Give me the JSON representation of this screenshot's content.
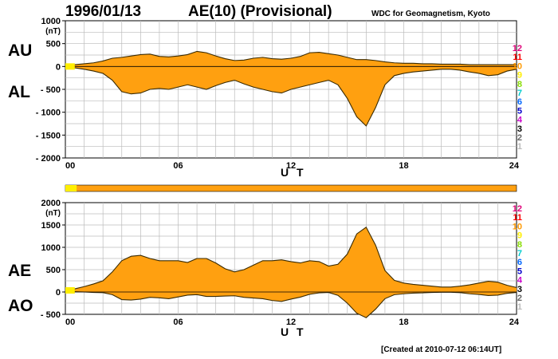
{
  "header": {
    "date": "1996/01/13",
    "title": "AE(10) (Provisional)",
    "org": "WDC for Geomagnetism, Kyoto"
  },
  "footer": {
    "created": "[Created at 2010-07-12 06:14UT]"
  },
  "legend": {
    "items": [
      {
        "label": "12",
        "color": "#e0007a"
      },
      {
        "label": "11",
        "color": "#ff0000"
      },
      {
        "label": "10",
        "color": "#ff9900"
      },
      {
        "label": "9",
        "color": "#ffee00"
      },
      {
        "label": "8",
        "color": "#88dd00"
      },
      {
        "label": "7",
        "color": "#00cccc"
      },
      {
        "label": "6",
        "color": "#0066ff"
      },
      {
        "label": "5",
        "color": "#0000cc"
      },
      {
        "label": "4",
        "color": "#cc00cc"
      },
      {
        "label": "3",
        "color": "#000000"
      },
      {
        "label": "2",
        "color": "#666666"
      },
      {
        "label": "1",
        "color": "#bbbbbb"
      }
    ]
  },
  "colors": {
    "fill": "#ffa010",
    "line": "#3a2a00",
    "grid": "#bbbbbb",
    "yellow": "#ffee00"
  },
  "chart_data": [
    {
      "type": "area",
      "label_top": "AU",
      "label_bottom": "AL",
      "unit": "(nT)",
      "xlabel": "U T",
      "xlim": [
        0,
        24
      ],
      "ylim": [
        -2000,
        1000
      ],
      "x_ticks": [
        "00",
        "06",
        "12",
        "18",
        "24"
      ],
      "y_ticks": [
        "1000",
        "500",
        "0",
        "- 500",
        "- 1000",
        "- 1500",
        "- 2000"
      ],
      "series": [
        {
          "name": "AU",
          "x": [
            0,
            0.5,
            1,
            1.5,
            2,
            2.5,
            3,
            3.5,
            4,
            4.5,
            5,
            5.5,
            6,
            6.5,
            7,
            7.5,
            8,
            8.5,
            9,
            9.5,
            10,
            10.5,
            11,
            11.5,
            12,
            12.5,
            13,
            13.5,
            14,
            14.5,
            15,
            15.5,
            16,
            16.5,
            17,
            17.5,
            18,
            18.5,
            19,
            19.5,
            20,
            20.5,
            21,
            21.5,
            22,
            22.5,
            23,
            23.5,
            24
          ],
          "values": [
            30,
            40,
            60,
            80,
            120,
            180,
            200,
            230,
            260,
            270,
            220,
            210,
            230,
            260,
            330,
            300,
            230,
            170,
            130,
            140,
            180,
            200,
            170,
            160,
            180,
            220,
            300,
            310,
            280,
            250,
            200,
            150,
            150,
            130,
            100,
            80,
            70,
            70,
            60,
            60,
            50,
            50,
            50,
            40,
            40,
            40,
            40,
            40,
            40
          ]
        },
        {
          "name": "AL",
          "x": [
            0,
            0.5,
            1,
            1.5,
            2,
            2.5,
            3,
            3.5,
            4,
            4.5,
            5,
            5.5,
            6,
            6.5,
            7,
            7.5,
            8,
            8.5,
            9,
            9.5,
            10,
            10.5,
            11,
            11.5,
            12,
            12.5,
            13,
            13.5,
            14,
            14.5,
            15,
            15.5,
            16,
            16.5,
            17,
            17.5,
            18,
            18.5,
            19,
            19.5,
            20,
            20.5,
            21,
            21.5,
            22,
            22.5,
            23,
            23.5,
            24
          ],
          "values": [
            -20,
            -30,
            -60,
            -100,
            -150,
            -300,
            -550,
            -600,
            -580,
            -500,
            -480,
            -500,
            -450,
            -400,
            -450,
            -500,
            -420,
            -350,
            -300,
            -380,
            -450,
            -500,
            -550,
            -580,
            -500,
            -450,
            -400,
            -350,
            -300,
            -400,
            -700,
            -1100,
            -1300,
            -900,
            -400,
            -200,
            -150,
            -120,
            -100,
            -80,
            -60,
            -60,
            -80,
            -120,
            -150,
            -200,
            -180,
            -100,
            -60
          ]
        }
      ]
    },
    {
      "type": "area",
      "label_top": "AE",
      "label_bottom": "AO",
      "unit": "(nT)",
      "xlabel": "U T",
      "xlim": [
        0,
        24
      ],
      "ylim": [
        -500,
        2000
      ],
      "x_ticks": [
        "00",
        "06",
        "12",
        "18",
        "24"
      ],
      "y_ticks": [
        "2000",
        "1500",
        "1000",
        "500",
        "0",
        "- 500"
      ],
      "series": [
        {
          "name": "AE",
          "x": [
            0,
            0.5,
            1,
            1.5,
            2,
            2.5,
            3,
            3.5,
            4,
            4.5,
            5,
            5.5,
            6,
            6.5,
            7,
            7.5,
            8,
            8.5,
            9,
            9.5,
            10,
            10.5,
            11,
            11.5,
            12,
            12.5,
            13,
            13.5,
            14,
            14.5,
            15,
            15.5,
            16,
            16.5,
            17,
            17.5,
            18,
            18.5,
            19,
            19.5,
            20,
            20.5,
            21,
            21.5,
            22,
            22.5,
            23,
            23.5,
            24
          ],
          "values": [
            60,
            70,
            120,
            180,
            250,
            450,
            700,
            800,
            820,
            750,
            700,
            700,
            700,
            660,
            750,
            750,
            650,
            520,
            450,
            500,
            600,
            700,
            700,
            720,
            680,
            650,
            700,
            680,
            580,
            620,
            850,
            1300,
            1450,
            1050,
            480,
            260,
            200,
            170,
            150,
            130,
            110,
            110,
            130,
            160,
            200,
            240,
            220,
            150,
            100
          ]
        },
        {
          "name": "AO",
          "x": [
            0,
            0.5,
            1,
            1.5,
            2,
            2.5,
            3,
            3.5,
            4,
            4.5,
            5,
            5.5,
            6,
            6.5,
            7,
            7.5,
            8,
            8.5,
            9,
            9.5,
            10,
            10.5,
            11,
            11.5,
            12,
            12.5,
            13,
            13.5,
            14,
            14.5,
            15,
            15.5,
            16,
            16.5,
            17,
            17.5,
            18,
            18.5,
            19,
            19.5,
            20,
            20.5,
            21,
            21.5,
            22,
            22.5,
            23,
            23.5,
            24
          ],
          "values": [
            5,
            5,
            0,
            -10,
            -15,
            -60,
            -170,
            -180,
            -160,
            -120,
            -130,
            -150,
            -110,
            -70,
            -60,
            -100,
            -100,
            -90,
            -85,
            -120,
            -135,
            -150,
            -190,
            -210,
            -160,
            -115,
            -50,
            -20,
            -10,
            -75,
            -250,
            -475,
            -575,
            -385,
            -150,
            -60,
            -40,
            -25,
            -20,
            -10,
            -5,
            -5,
            -15,
            -40,
            -55,
            -80,
            -70,
            -30,
            -10
          ]
        }
      ]
    }
  ]
}
